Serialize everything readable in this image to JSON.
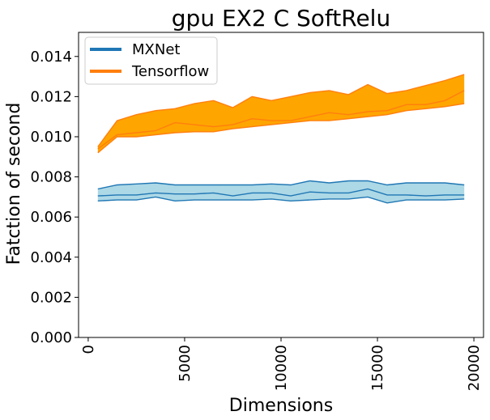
{
  "chart_data": {
    "type": "area",
    "title": "gpu EX2 C SoftRelu",
    "xlabel": "Dimensions",
    "ylabel": "Fatction of second",
    "xlim": [
      -500,
      20500
    ],
    "ylim": [
      0,
      0.0152
    ],
    "xticks": [
      0,
      5000,
      10000,
      15000,
      20000
    ],
    "xtick_labels": [
      "0",
      "5000",
      "10000",
      "15000",
      "20000"
    ],
    "yticks": [
      0,
      0.002,
      0.004,
      0.006,
      0.008,
      0.01,
      0.012,
      0.014
    ],
    "ytick_labels": [
      "0.000",
      "0.002",
      "0.004",
      "0.006",
      "0.008",
      "0.010",
      "0.012",
      "0.014"
    ],
    "legend_position": "top-left",
    "grid": false,
    "x": [
      500,
      1500,
      2500,
      3500,
      4500,
      5500,
      6500,
      7500,
      8500,
      9500,
      10500,
      11500,
      12500,
      13500,
      14500,
      15500,
      16500,
      17500,
      18500,
      19500
    ],
    "series": [
      {
        "name": "MXNet",
        "color": "#1f77b4",
        "fill": "#add8e6",
        "upper": [
          0.0074,
          0.0076,
          0.00765,
          0.0077,
          0.0076,
          0.0076,
          0.0076,
          0.0076,
          0.0076,
          0.00765,
          0.0076,
          0.0078,
          0.0077,
          0.0078,
          0.0078,
          0.0076,
          0.0077,
          0.0077,
          0.0077,
          0.0076
        ],
        "middle": [
          0.00705,
          0.0071,
          0.0071,
          0.0072,
          0.00715,
          0.00715,
          0.0072,
          0.00705,
          0.0072,
          0.0072,
          0.00705,
          0.00725,
          0.0072,
          0.0072,
          0.0074,
          0.0071,
          0.0071,
          0.00705,
          0.0071,
          0.0071
        ],
        "lower": [
          0.0068,
          0.00685,
          0.00685,
          0.007,
          0.0068,
          0.00685,
          0.00685,
          0.00685,
          0.00685,
          0.0069,
          0.0068,
          0.00685,
          0.0069,
          0.0069,
          0.007,
          0.0067,
          0.00685,
          0.00685,
          0.00685,
          0.0069
        ]
      },
      {
        "name": "Tensorflow",
        "color": "#ff7f0e",
        "fill": "#ffa500",
        "upper": [
          0.0095,
          0.0108,
          0.0111,
          0.0113,
          0.0114,
          0.01165,
          0.0118,
          0.01145,
          0.012,
          0.0118,
          0.012,
          0.0122,
          0.0123,
          0.0121,
          0.0126,
          0.01215,
          0.0123,
          0.01255,
          0.0128,
          0.0131
        ],
        "middle": [
          0.0094,
          0.0101,
          0.0102,
          0.0103,
          0.0107,
          0.0106,
          0.0105,
          0.0106,
          0.0109,
          0.0108,
          0.0108,
          0.011,
          0.0112,
          0.0111,
          0.01125,
          0.0113,
          0.0116,
          0.0116,
          0.0118,
          0.0123
        ],
        "lower": [
          0.0092,
          0.01,
          0.01,
          0.0101,
          0.0102,
          0.01025,
          0.01025,
          0.0104,
          0.0105,
          0.0106,
          0.0107,
          0.0108,
          0.0108,
          0.0109,
          0.011,
          0.0111,
          0.0113,
          0.0114,
          0.0115,
          0.01165
        ]
      }
    ]
  }
}
